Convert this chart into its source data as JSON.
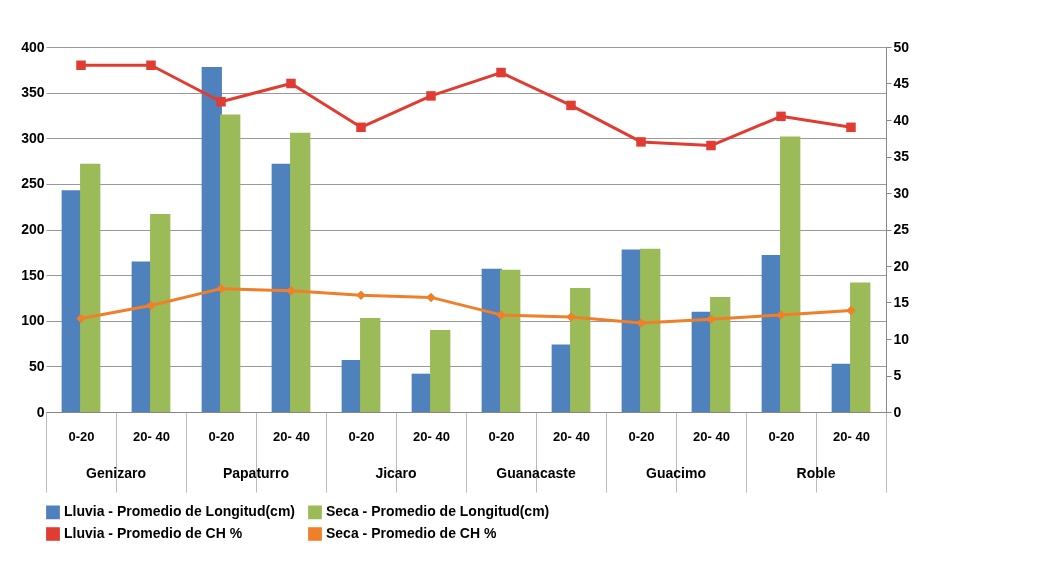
{
  "chart_data": {
    "type": "bar",
    "categories": [
      "0-20",
      "20- 40",
      "0-20",
      "20- 40",
      "0-20",
      "20- 40",
      "0-20",
      "20- 40",
      "0-20",
      "20- 40",
      "0-20",
      "20- 40"
    ],
    "annotations": [
      "Genizaro",
      "Papaturro",
      "Jicaro",
      "Guanacaste",
      "Guacimo",
      "Roble"
    ],
    "series": [
      {
        "name": "Lluvia - Promedio de Longitud(cm)",
        "type": "bar",
        "color": "#4f81bd",
        "values": [
          243,
          165,
          378,
          272,
          57,
          42,
          157,
          74,
          178,
          110,
          172,
          53
        ]
      },
      {
        "name": "Seca - Promedio de Longitud(cm)",
        "type": "bar",
        "color": "#9bbb59",
        "values": [
          272,
          217,
          326,
          306,
          103,
          90,
          156,
          136,
          179,
          126,
          302,
          142
        ]
      },
      {
        "name": "Lluvia - Promedio de CH %",
        "type": "line",
        "axis": "y2",
        "marker": "square",
        "color": "#e03c31",
        "values": [
          47.5,
          47.5,
          42.5,
          45,
          39,
          43.3,
          46.5,
          42,
          37,
          36.5,
          40.5,
          39
        ]
      },
      {
        "name": "Seca - Promedio de CH %",
        "type": "line",
        "axis": "y2",
        "marker": "diamond",
        "color": "#f07f2a",
        "values": [
          12.8,
          14.6,
          16.9,
          16.6,
          16,
          15.7,
          13.3,
          13,
          12.2,
          12.7,
          13.3,
          13.9
        ]
      }
    ],
    "ylim": [
      0,
      400
    ],
    "yticks": [
      0,
      50,
      100,
      150,
      200,
      250,
      300,
      350,
      400
    ],
    "y2lim": [
      0,
      50
    ],
    "y2ticks": [
      0,
      5,
      10,
      15,
      20,
      25,
      30,
      35,
      40,
      45,
      50
    ],
    "grid": "y",
    "legend": "bottom"
  }
}
